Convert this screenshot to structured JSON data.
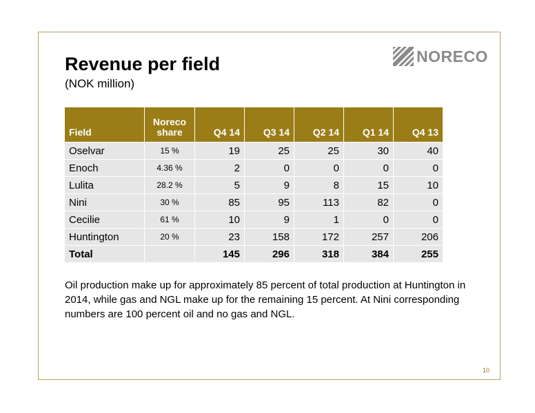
{
  "title": "Revenue per field",
  "subtitle": "(NOK million)",
  "logo": {
    "text": "NORECO",
    "icon": "noreco-stripes-icon"
  },
  "table": {
    "headers": {
      "field": "Field",
      "share": [
        "Noreco",
        "share"
      ],
      "quarters": [
        "Q4 14",
        "Q3 14",
        "Q2 14",
        "Q1 14",
        "Q4 13"
      ]
    },
    "rows": [
      {
        "field": "Oselvar",
        "share": "15 %",
        "values": [
          "19",
          "25",
          "25",
          "30",
          "40"
        ]
      },
      {
        "field": "Enoch",
        "share": "4.36 %",
        "values": [
          "2",
          "0",
          "0",
          "0",
          "0"
        ]
      },
      {
        "field": "Lulita",
        "share": "28.2 %",
        "values": [
          "5",
          "9",
          "8",
          "15",
          "10"
        ]
      },
      {
        "field": "Nini",
        "share": "30 %",
        "values": [
          "85",
          "95",
          "113",
          "82",
          "0"
        ]
      },
      {
        "field": "Cecilie",
        "share": "61 %",
        "values": [
          "10",
          "9",
          "1",
          "0",
          "0"
        ]
      },
      {
        "field": "Huntington",
        "share": "20 %",
        "values": [
          "23",
          "158",
          "172",
          "257",
          "206"
        ]
      }
    ],
    "total": {
      "field": "Total",
      "share": "",
      "values": [
        "145",
        "296",
        "318",
        "384",
        "255"
      ]
    }
  },
  "footnote": "Oil production make up for approximately 85 percent of total production at Huntington in 2014, while gas and NGL make up for the remaining 15 percent. At Nini corresponding numbers are 100 percent oil and no gas and NGL.",
  "page_number": "10",
  "colors": {
    "header_bg": "#9a7d16",
    "cell_bg": "#e6e6e6",
    "border": "#b8a35c",
    "logo": "#8a8a8a"
  }
}
